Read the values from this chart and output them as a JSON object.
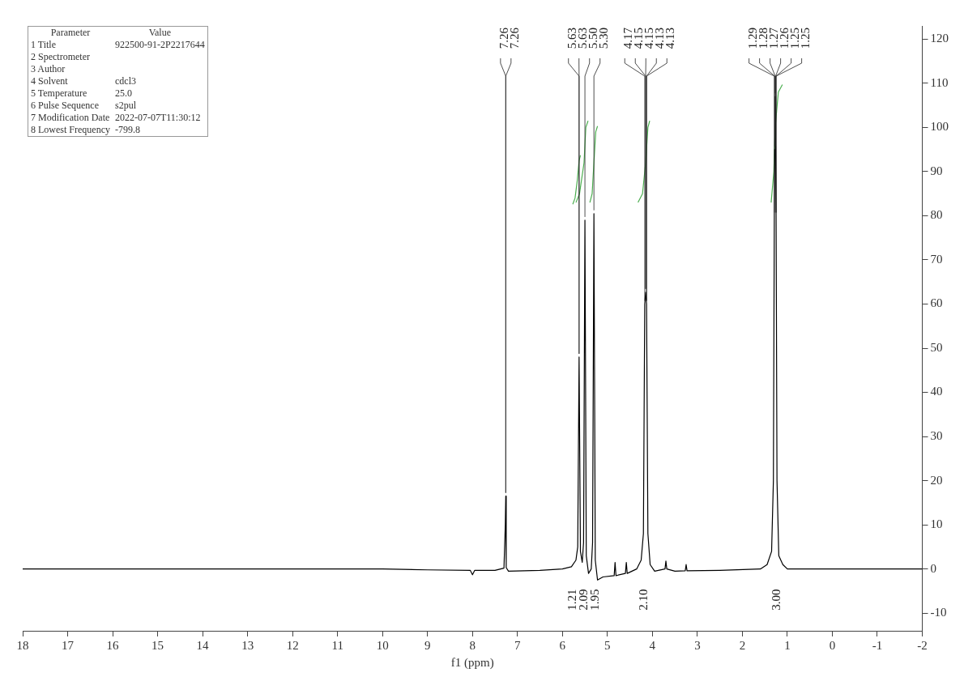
{
  "chart_data": {
    "type": "line",
    "xlabel": "f1 (ppm)",
    "xlim": [
      18,
      -2
    ],
    "xticks": [
      18,
      17,
      16,
      15,
      14,
      13,
      12,
      11,
      10,
      9,
      8,
      7,
      6,
      5,
      4,
      3,
      2,
      1,
      0,
      -1,
      -2
    ],
    "ylim": [
      -14,
      123
    ],
    "yticks": [
      -10,
      0,
      10,
      20,
      30,
      40,
      50,
      60,
      70,
      80,
      90,
      100,
      110,
      120
    ],
    "grid": false,
    "legend": false,
    "marker": "none",
    "series": [
      {
        "color": "#000000",
        "x": [
          18,
          16,
          14,
          12,
          10,
          9,
          8.05,
          8.0,
          7.95,
          7.5,
          7.3,
          7.27,
          7.26,
          7.25,
          7.2,
          6.5,
          6.0,
          5.8,
          5.7,
          5.66,
          5.63,
          5.6,
          5.56,
          5.53,
          5.5,
          5.47,
          5.42,
          5.36,
          5.33,
          5.3,
          5.27,
          5.22,
          5.1,
          4.85,
          4.83,
          4.81,
          4.6,
          4.58,
          4.56,
          4.35,
          4.25,
          4.2,
          4.17,
          4.15,
          4.13,
          4.1,
          4.05,
          3.95,
          3.72,
          3.7,
          3.68,
          3.5,
          3.27,
          3.25,
          3.23,
          2.5,
          1.6,
          1.45,
          1.35,
          1.31,
          1.29,
          1.28,
          1.27,
          1.26,
          1.25,
          1.23,
          1.19,
          1.1,
          1.0,
          0,
          -1,
          -2
        ],
        "values": [
          0,
          0,
          0,
          0,
          0,
          -0.2,
          -0.3,
          -1.3,
          -0.3,
          -0.3,
          0.2,
          10,
          16.5,
          0.3,
          -0.5,
          -0.3,
          0,
          0.5,
          2,
          5,
          48,
          4,
          1.5,
          6,
          79,
          3,
          -1,
          0,
          6,
          80.5,
          2,
          -2.5,
          -1.8,
          -1.5,
          1.5,
          -1.5,
          -1,
          1.5,
          -1,
          0,
          2,
          8,
          60,
          62.7,
          60,
          8,
          1,
          -0.5,
          0,
          1.8,
          0,
          -0.5,
          -0.4,
          1,
          -0.4,
          -0.3,
          0,
          1,
          4,
          20,
          80,
          95,
          107,
          95,
          80,
          20,
          3,
          1,
          0,
          0,
          0,
          0
        ]
      },
      {
        "color": "#4caf50",
        "x": [
          5.77,
          5.72,
          5.67,
          5.63,
          5.6
        ],
        "values": [
          82.6,
          84,
          88,
          92.5,
          93.7
        ]
      },
      {
        "color": "#4caf50",
        "x": [
          5.7,
          5.62,
          5.52,
          5.48,
          5.43
        ],
        "values": [
          83,
          85,
          92,
          100,
          101.5
        ]
      },
      {
        "color": "#4caf50",
        "x": [
          5.39,
          5.34,
          5.3,
          5.26,
          5.22
        ],
        "values": [
          83,
          85,
          92,
          99,
          100.3
        ]
      },
      {
        "color": "#4caf50",
        "x": [
          4.32,
          4.22,
          4.15,
          4.1,
          4.06
        ],
        "values": [
          83,
          85,
          92,
          100,
          101.5
        ]
      },
      {
        "color": "#4caf50",
        "x": [
          1.36,
          1.3,
          1.27,
          1.2,
          1.11
        ],
        "values": [
          83,
          90,
          100,
          108,
          109.7
        ]
      }
    ],
    "annotations": [
      "Parameter\tValue",
      "1 Title\t922500-91-2P2217644",
      "2 Spectrometer\t",
      "3 Author\t",
      "4 Solvent\tcdcl3",
      "5 Temperature\t25.0",
      "6 Pulse Sequence\ts2pul",
      "7 Modification Date\t2022-07-07T11:30:12",
      "8 Lowest Frequency\t-799.8",
      {
        "text": "7.26",
        "x": 7.26,
        "y": 16.5
      },
      {
        "text": "7.26",
        "x": 7.26,
        "y": 16.5
      },
      {
        "text": "5.63",
        "x": 5.63,
        "y": 48
      },
      {
        "text": "5.63",
        "x": 5.63,
        "y": 48
      },
      {
        "text": "5.50",
        "x": 5.5,
        "y": 79
      },
      {
        "text": "5.30",
        "x": 5.3,
        "y": 80.5
      },
      {
        "text": "4.17",
        "x": 4.17,
        "y": 60
      },
      {
        "text": "4.15",
        "x": 4.15,
        "y": 62.7
      },
      {
        "text": "4.15",
        "x": 4.15,
        "y": 62.7
      },
      {
        "text": "4.13",
        "x": 4.13,
        "y": 60
      },
      {
        "text": "4.13",
        "x": 4.13,
        "y": 60
      },
      {
        "text": "1.29",
        "x": 1.29,
        "y": 80
      },
      {
        "text": "1.28",
        "x": 1.28,
        "y": 95
      },
      {
        "text": "1.27",
        "x": 1.27,
        "y": 107
      },
      {
        "text": "1.26",
        "x": 1.26,
        "y": 95
      },
      {
        "text": "1.25",
        "x": 1.25,
        "y": 80
      },
      {
        "text": "1.25",
        "x": 1.25,
        "y": 80
      },
      "1.21",
      "2.09",
      "1.95",
      "2.10",
      "3.00"
    ]
  }
}
